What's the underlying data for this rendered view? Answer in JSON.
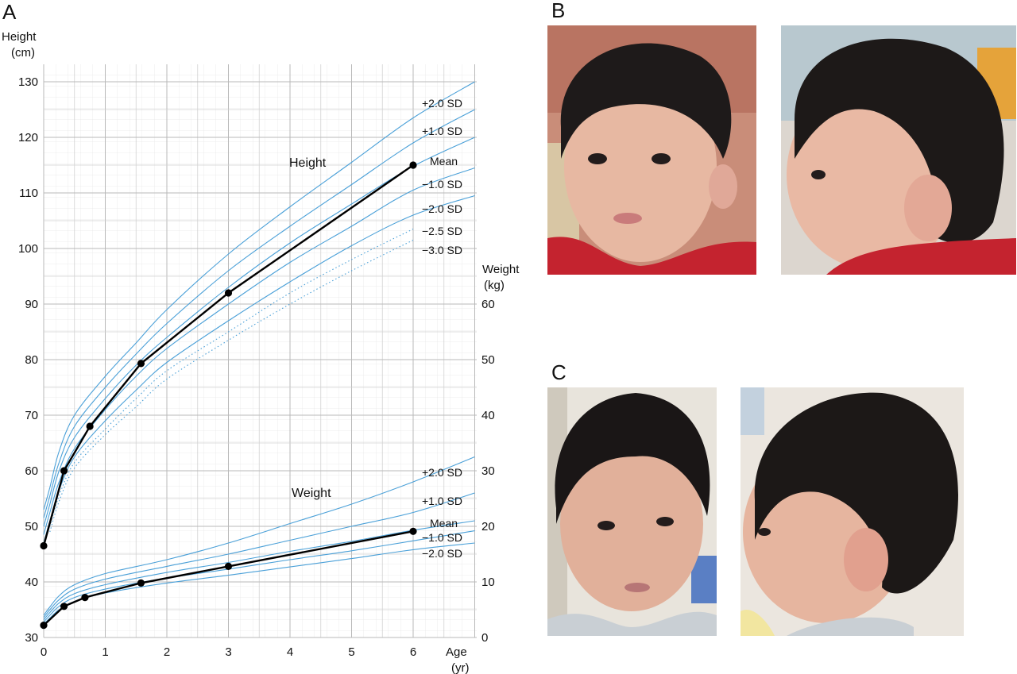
{
  "panels": {
    "a": "A",
    "b": "B",
    "c": "C"
  },
  "chart_data": {
    "type": "line",
    "left_axis": {
      "title_line1": "Height",
      "title_line2": "(cm)",
      "range": [
        30,
        130
      ],
      "ticks": [
        30,
        40,
        50,
        60,
        70,
        80,
        90,
        100,
        110,
        120,
        130
      ]
    },
    "right_axis": {
      "title_line1": "Weight",
      "title_line2": "(kg)",
      "range": [
        0,
        60
      ],
      "ticks": [
        0,
        10,
        20,
        30,
        40,
        50,
        60
      ]
    },
    "x_axis": {
      "title_line1": "Age",
      "title_line2": "(yr)",
      "range": [
        0,
        7
      ],
      "ticks": [
        0,
        1,
        2,
        3,
        4,
        5,
        6
      ]
    },
    "grid": true,
    "height": {
      "label": "Height",
      "points": [
        [
          0,
          46.5
        ],
        [
          0.33,
          60.0
        ],
        [
          0.75,
          68.0
        ],
        [
          1.58,
          79.3
        ],
        [
          3.0,
          92.0
        ],
        [
          6.0,
          115.0
        ]
      ],
      "reference_curves": [
        {
          "name": "+2.0 SD",
          "style": "solid",
          "values": [
            [
              0,
              53.0
            ],
            [
              0.1,
              57.0
            ],
            [
              0.25,
              63.5
            ],
            [
              0.5,
              70.0
            ],
            [
              1,
              77.0
            ],
            [
              1.5,
              83.0
            ],
            [
              2,
              89.0
            ],
            [
              3,
              99.0
            ],
            [
              4,
              107.5
            ],
            [
              5,
              115.5
            ],
            [
              6,
              123.5
            ],
            [
              7,
              130.0
            ]
          ]
        },
        {
          "name": "+1.0 SD",
          "style": "solid",
          "values": [
            [
              0,
              51.5
            ],
            [
              0.1,
              55.5
            ],
            [
              0.25,
              61.5
            ],
            [
              0.5,
              68.0
            ],
            [
              1,
              75.0
            ],
            [
              1.5,
              81.0
            ],
            [
              2,
              86.5
            ],
            [
              3,
              96.0
            ],
            [
              4,
              104.0
            ],
            [
              5,
              111.5
            ],
            [
              6,
              119.0
            ],
            [
              7,
              125.0
            ]
          ]
        },
        {
          "name": "Mean",
          "style": "solid",
          "values": [
            [
              0,
              50.0
            ],
            [
              0.1,
              54.0
            ],
            [
              0.25,
              60.0
            ],
            [
              0.5,
              66.0
            ],
            [
              1,
              73.0
            ],
            [
              1.5,
              79.0
            ],
            [
              2,
              84.0
            ],
            [
              3,
              93.0
            ],
            [
              4,
              101.0
            ],
            [
              5,
              108.0
            ],
            [
              6,
              114.8
            ],
            [
              7,
              120.0
            ]
          ]
        },
        {
          "name": "−1.0 SD",
          "style": "solid",
          "values": [
            [
              0,
              48.5
            ],
            [
              0.1,
              52.5
            ],
            [
              0.25,
              58.0
            ],
            [
              0.5,
              64.0
            ],
            [
              1,
              71.0
            ],
            [
              1.5,
              77.0
            ],
            [
              2,
              82.0
            ],
            [
              3,
              90.0
            ],
            [
              4,
              97.5
            ],
            [
              5,
              104.0
            ],
            [
              6,
              110.5
            ],
            [
              7,
              114.5
            ]
          ]
        },
        {
          "name": "−2.0 SD",
          "style": "solid",
          "values": [
            [
              0,
              47.0
            ],
            [
              0.1,
              51.0
            ],
            [
              0.25,
              56.5
            ],
            [
              0.5,
              62.5
            ],
            [
              1,
              69.0
            ],
            [
              1.5,
              74.5
            ],
            [
              2,
              79.5
            ],
            [
              3,
              87.0
            ],
            [
              4,
              94.0
            ],
            [
              5,
              100.5
            ],
            [
              6,
              106.0
            ],
            [
              7,
              109.5
            ]
          ]
        },
        {
          "name": "−2.5 SD",
          "style": "dotted",
          "values": [
            [
              0.1,
              50.0
            ],
            [
              0.25,
              55.5
            ],
            [
              0.5,
              61.5
            ],
            [
              1,
              67.5
            ],
            [
              1.5,
              73.0
            ],
            [
              2,
              78.0
            ],
            [
              3,
              85.0
            ],
            [
              4,
              92.0
            ],
            [
              5,
              98.0
            ],
            [
              6,
              103.5
            ]
          ]
        },
        {
          "name": "−3.0 SD",
          "style": "dotted",
          "values": [
            [
              0.1,
              49.0
            ],
            [
              0.25,
              54.5
            ],
            [
              0.5,
              60.5
            ],
            [
              1,
              66.5
            ],
            [
              1.5,
              71.5
            ],
            [
              2,
              76.5
            ],
            [
              3,
              83.5
            ],
            [
              4,
              90.0
            ],
            [
              5,
              96.0
            ],
            [
              6,
              101.5
            ]
          ]
        }
      ]
    },
    "weight": {
      "label": "Weight",
      "points": [
        [
          0,
          2.2
        ],
        [
          0.33,
          5.6
        ],
        [
          0.67,
          7.2
        ],
        [
          1.58,
          9.8
        ],
        [
          3.0,
          12.8
        ],
        [
          6.0,
          19.1
        ]
      ],
      "reference_curves": [
        {
          "name": "+2.0 SD",
          "style": "solid",
          "values": [
            [
              0,
              4.0
            ],
            [
              0.1,
              5.5
            ],
            [
              0.25,
              7.5
            ],
            [
              0.5,
              9.5
            ],
            [
              1,
              11.5
            ],
            [
              2,
              14.0
            ],
            [
              3,
              17.0
            ],
            [
              4,
              20.5
            ],
            [
              5,
              24.0
            ],
            [
              6,
              28.0
            ],
            [
              7,
              32.5
            ]
          ]
        },
        {
          "name": "+1.0 SD",
          "style": "solid",
          "values": [
            [
              0,
              3.6
            ],
            [
              0.1,
              5.0
            ],
            [
              0.25,
              6.8
            ],
            [
              0.5,
              8.7
            ],
            [
              1,
              10.5
            ],
            [
              2,
              12.8
            ],
            [
              3,
              15.0
            ],
            [
              4,
              17.5
            ],
            [
              5,
              20.0
            ],
            [
              6,
              22.5
            ],
            [
              7,
              26.0
            ]
          ]
        },
        {
          "name": "Mean",
          "style": "solid",
          "values": [
            [
              0,
              3.2
            ],
            [
              0.1,
              4.5
            ],
            [
              0.25,
              6.2
            ],
            [
              0.5,
              7.9
            ],
            [
              1,
              9.5
            ],
            [
              2,
              11.7
            ],
            [
              3,
              13.5
            ],
            [
              4,
              15.5
            ],
            [
              5,
              17.3
            ],
            [
              6,
              19.3
            ],
            [
              7,
              21.0
            ]
          ]
        },
        {
          "name": "−1.0 SD",
          "style": "solid",
          "values": [
            [
              0,
              2.8
            ],
            [
              0.1,
              4.0
            ],
            [
              0.25,
              5.6
            ],
            [
              0.5,
              7.2
            ],
            [
              1,
              8.7
            ],
            [
              2,
              10.7
            ],
            [
              3,
              12.3
            ],
            [
              4,
              14.0
            ],
            [
              5,
              15.6
            ],
            [
              6,
              17.4
            ],
            [
              7,
              19.2
            ]
          ]
        },
        {
          "name": "−2.0 SD",
          "style": "solid",
          "values": [
            [
              0,
              2.4
            ],
            [
              0.1,
              3.5
            ],
            [
              0.25,
              5.0
            ],
            [
              0.5,
              6.5
            ],
            [
              1,
              8.0
            ],
            [
              2,
              9.8
            ],
            [
              3,
              11.2
            ],
            [
              4,
              12.7
            ],
            [
              5,
              14.2
            ],
            [
              6,
              15.8
            ],
            [
              7,
              17.0
            ]
          ]
        }
      ]
    }
  },
  "photos": {
    "b_front": "infant-front-photo",
    "b_side": "infant-profile-photo",
    "c_front": "child-front-photo",
    "c_side": "child-profile-photo"
  }
}
